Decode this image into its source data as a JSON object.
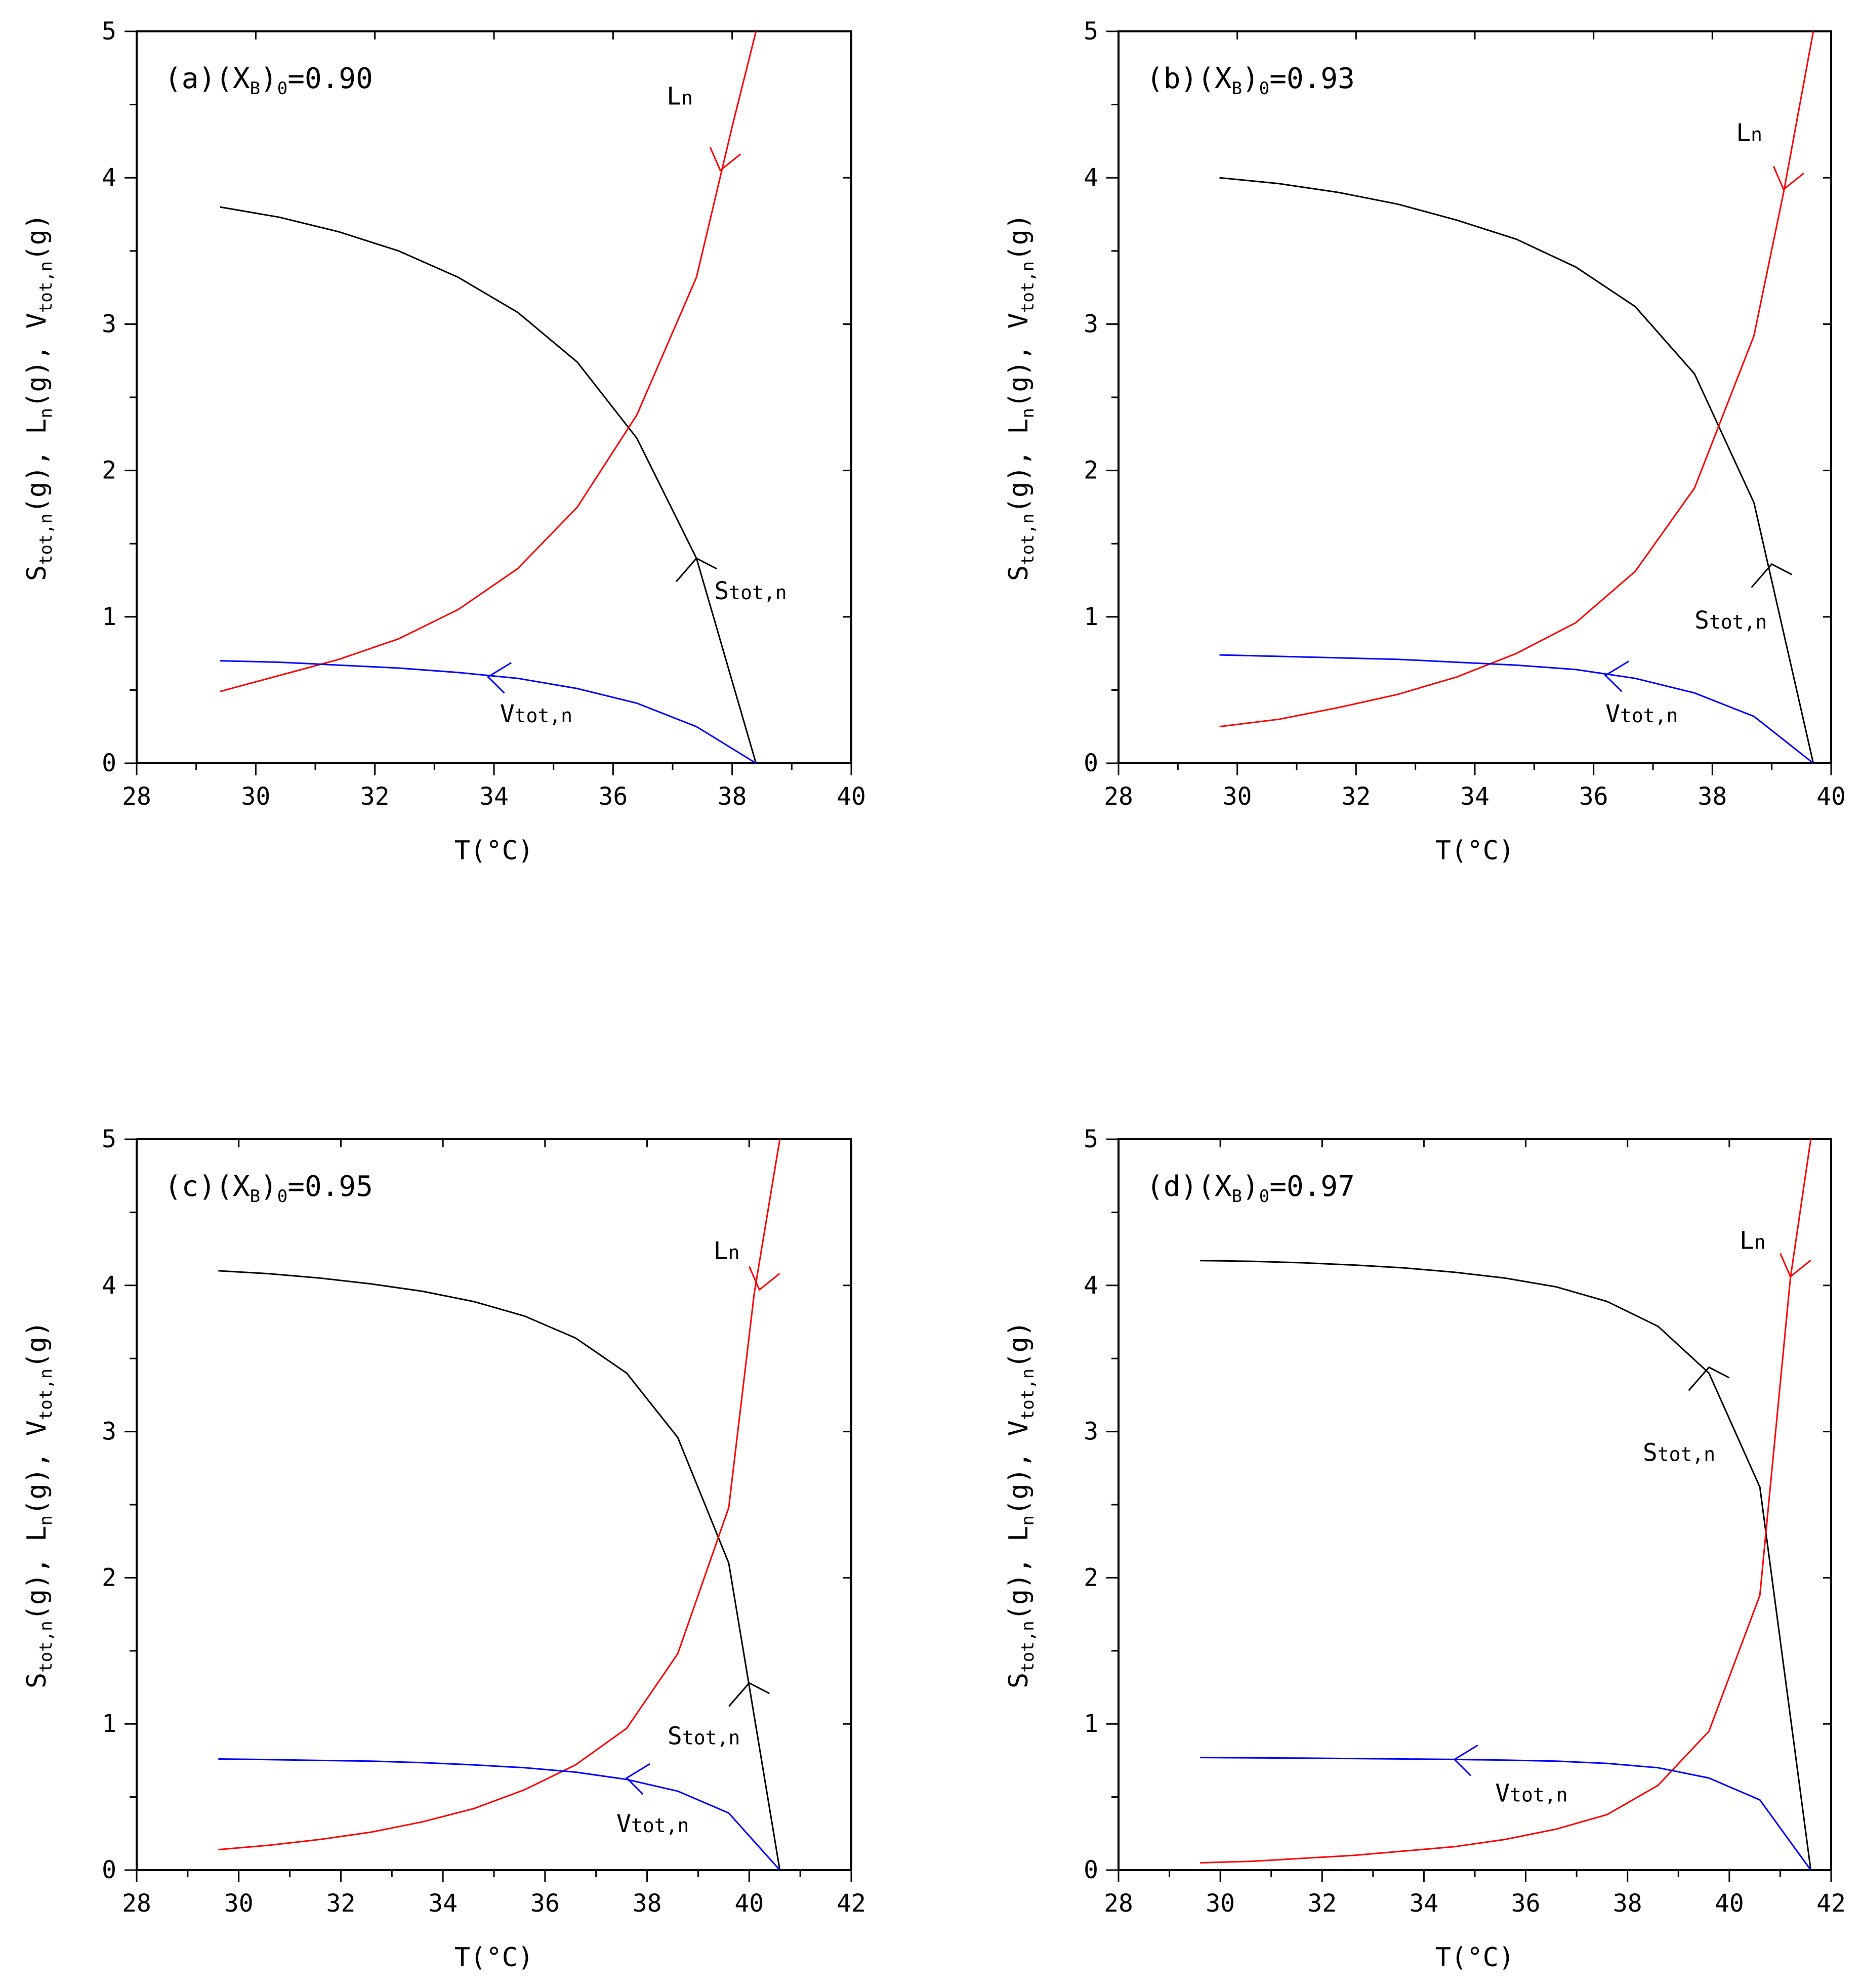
{
  "figure": {
    "ylabel": "S_tot,n(g), L_n(g), V_tot,n(g)",
    "xlabel": "T(°C)"
  },
  "chart_data": [
    {
      "type": "line",
      "panel_label": "(a)",
      "condition": "(X_B)_0=0.90",
      "xlabel": "T(°C)",
      "ylabel": "S_tot,n(g), L_n(g), V_tot,n(g)",
      "xlim": [
        28,
        40
      ],
      "ylim": [
        0,
        5
      ],
      "xticks": [
        28,
        30,
        32,
        34,
        36,
        38,
        40
      ],
      "yticks": [
        0,
        1,
        2,
        3,
        4,
        5
      ],
      "series": [
        {
          "name": "Stot,n",
          "color": "#000000",
          "x": [
            29.4,
            30.4,
            31.4,
            32.4,
            33.4,
            34.4,
            35.4,
            36.4,
            37.4,
            38.4
          ],
          "y": [
            3.8,
            3.73,
            3.63,
            3.5,
            3.32,
            3.08,
            2.74,
            2.22,
            1.4,
            0.0
          ],
          "arrow_at": [
            37.4,
            1.4
          ],
          "arrow_dir": "up",
          "label_pos": [
            37.7,
            1.12
          ]
        },
        {
          "name": "Ln",
          "color": "#ff0000",
          "x": [
            29.4,
            30.4,
            31.4,
            32.4,
            33.4,
            34.4,
            35.4,
            36.4,
            37.4,
            38.0,
            38.4
          ],
          "y": [
            0.49,
            0.6,
            0.71,
            0.85,
            1.05,
            1.33,
            1.75,
            2.38,
            3.32,
            4.35,
            5.0
          ],
          "arrow_at": [
            37.8,
            4.05
          ],
          "arrow_dir": "down",
          "label_pos": [
            36.9,
            4.5
          ]
        },
        {
          "name": "Vtot,n",
          "color": "#0000ff",
          "x": [
            29.4,
            30.4,
            31.4,
            32.4,
            33.4,
            34.4,
            35.4,
            36.4,
            37.4,
            38.4
          ],
          "y": [
            0.7,
            0.69,
            0.67,
            0.65,
            0.62,
            0.58,
            0.51,
            0.41,
            0.25,
            0.0
          ],
          "arrow_at": [
            33.9,
            0.59
          ],
          "arrow_dir": "left",
          "label_pos": [
            34.1,
            0.28
          ]
        }
      ]
    },
    {
      "type": "line",
      "panel_label": "(b)",
      "condition": "(X_B)_0=0.93",
      "xlabel": "T(°C)",
      "ylabel": "S_tot,n(g), L_n(g), V_tot,n(g)",
      "xlim": [
        28,
        40
      ],
      "ylim": [
        0,
        5
      ],
      "xticks": [
        28,
        30,
        32,
        34,
        36,
        38,
        40
      ],
      "yticks": [
        0,
        1,
        2,
        3,
        4,
        5
      ],
      "series": [
        {
          "name": "Stot,n",
          "color": "#000000",
          "x": [
            29.7,
            30.7,
            31.7,
            32.7,
            33.7,
            34.7,
            35.7,
            36.7,
            37.7,
            38.7,
            39.7
          ],
          "y": [
            4.0,
            3.96,
            3.9,
            3.82,
            3.71,
            3.58,
            3.39,
            3.12,
            2.66,
            1.78,
            0.0
          ],
          "arrow_at": [
            39.0,
            1.36
          ],
          "arrow_dir": "up",
          "label_pos": [
            37.7,
            0.92
          ]
        },
        {
          "name": "Ln",
          "color": "#ff0000",
          "x": [
            29.7,
            30.7,
            31.7,
            32.7,
            33.7,
            34.7,
            35.7,
            36.7,
            37.7,
            38.7,
            39.2,
            39.7
          ],
          "y": [
            0.25,
            0.3,
            0.38,
            0.47,
            0.59,
            0.75,
            0.96,
            1.31,
            1.88,
            2.92,
            3.9,
            5.0
          ],
          "arrow_at": [
            39.2,
            3.92
          ],
          "arrow_dir": "down",
          "label_pos": [
            38.4,
            4.25
          ]
        },
        {
          "name": "Vtot,n",
          "color": "#0000ff",
          "x": [
            29.7,
            30.7,
            31.7,
            32.7,
            33.7,
            34.7,
            35.7,
            36.7,
            37.7,
            38.7,
            39.7
          ],
          "y": [
            0.74,
            0.73,
            0.72,
            0.71,
            0.69,
            0.67,
            0.64,
            0.58,
            0.48,
            0.32,
            0.0
          ],
          "arrow_at": [
            36.2,
            0.6
          ],
          "arrow_dir": "left",
          "label_pos": [
            36.2,
            0.28
          ]
        }
      ]
    },
    {
      "type": "line",
      "panel_label": "(c)",
      "condition": "(X_B)_0=0.95",
      "xlabel": "T(°C)",
      "ylabel": "S_tot,n(g), L_n(g), V_tot,n(g)",
      "xlim": [
        28,
        42
      ],
      "ylim": [
        0,
        5
      ],
      "xticks": [
        28,
        30,
        32,
        34,
        36,
        38,
        40,
        42
      ],
      "yticks": [
        0,
        1,
        2,
        3,
        4,
        5
      ],
      "series": [
        {
          "name": "Stot,n",
          "color": "#000000",
          "x": [
            29.6,
            30.6,
            31.6,
            32.6,
            33.6,
            34.6,
            35.6,
            36.6,
            37.6,
            38.6,
            39.6,
            40.6
          ],
          "y": [
            4.1,
            4.08,
            4.05,
            4.01,
            3.96,
            3.89,
            3.79,
            3.64,
            3.4,
            2.96,
            2.1,
            0.0
          ],
          "arrow_at": [
            40.0,
            1.28
          ],
          "arrow_dir": "up",
          "label_pos": [
            38.4,
            0.86
          ]
        },
        {
          "name": "Ln",
          "color": "#ff0000",
          "x": [
            29.6,
            30.6,
            31.6,
            32.6,
            33.6,
            34.6,
            35.6,
            36.6,
            37.6,
            38.6,
            39.6,
            40.1,
            40.6
          ],
          "y": [
            0.14,
            0.17,
            0.21,
            0.26,
            0.33,
            0.42,
            0.55,
            0.72,
            0.97,
            1.48,
            2.48,
            3.95,
            5.0
          ],
          "arrow_at": [
            40.2,
            3.97
          ],
          "arrow_dir": "down",
          "label_pos": [
            39.3,
            4.18
          ]
        },
        {
          "name": "Vtot,n",
          "color": "#0000ff",
          "x": [
            29.6,
            30.6,
            31.6,
            32.6,
            33.6,
            34.6,
            35.6,
            36.6,
            37.6,
            38.6,
            39.6,
            40.6
          ],
          "y": [
            0.76,
            0.756,
            0.75,
            0.745,
            0.735,
            0.72,
            0.7,
            0.67,
            0.62,
            0.54,
            0.39,
            0.0
          ],
          "arrow_at": [
            37.6,
            0.63
          ],
          "arrow_dir": "left",
          "label_pos": [
            37.4,
            0.26
          ]
        }
      ]
    },
    {
      "type": "line",
      "panel_label": "(d)",
      "condition": "(X_B)_0=0.97",
      "xlabel": "T(°C)",
      "ylabel": "S_tot,n(g), L_n(g), V_tot,n(g)",
      "xlim": [
        28,
        42
      ],
      "ylim": [
        0,
        5
      ],
      "xticks": [
        28,
        30,
        32,
        34,
        36,
        38,
        40,
        42
      ],
      "yticks": [
        0,
        1,
        2,
        3,
        4,
        5
      ],
      "series": [
        {
          "name": "Stot,n",
          "color": "#000000",
          "x": [
            29.6,
            30.6,
            31.6,
            32.6,
            33.6,
            34.6,
            35.6,
            36.6,
            37.6,
            38.6,
            39.6,
            40.6,
            41.6
          ],
          "y": [
            4.17,
            4.165,
            4.155,
            4.14,
            4.12,
            4.09,
            4.05,
            3.99,
            3.89,
            3.72,
            3.4,
            2.62,
            0.0
          ],
          "arrow_at": [
            39.6,
            3.44
          ],
          "arrow_dir": "up",
          "label_pos": [
            38.3,
            2.8
          ]
        },
        {
          "name": "Ln",
          "color": "#ff0000",
          "x": [
            29.6,
            30.6,
            31.6,
            32.6,
            33.6,
            34.6,
            35.6,
            36.6,
            37.6,
            38.6,
            39.6,
            40.6,
            41.2,
            41.6
          ],
          "y": [
            0.05,
            0.06,
            0.08,
            0.1,
            0.13,
            0.16,
            0.21,
            0.28,
            0.38,
            0.58,
            0.95,
            1.88,
            4.05,
            5.0
          ],
          "arrow_at": [
            41.2,
            4.06
          ],
          "arrow_dir": "down",
          "label_pos": [
            40.2,
            4.25
          ]
        },
        {
          "name": "Vtot,n",
          "color": "#0000ff",
          "x": [
            29.6,
            30.6,
            31.6,
            32.6,
            33.6,
            34.6,
            35.6,
            36.6,
            37.6,
            38.6,
            39.6,
            40.6,
            41.6
          ],
          "y": [
            0.77,
            0.768,
            0.766,
            0.763,
            0.76,
            0.757,
            0.752,
            0.745,
            0.73,
            0.7,
            0.63,
            0.48,
            0.0
          ],
          "arrow_at": [
            34.6,
            0.757
          ],
          "arrow_dir": "left",
          "label_pos": [
            35.4,
            0.47
          ]
        }
      ]
    }
  ]
}
